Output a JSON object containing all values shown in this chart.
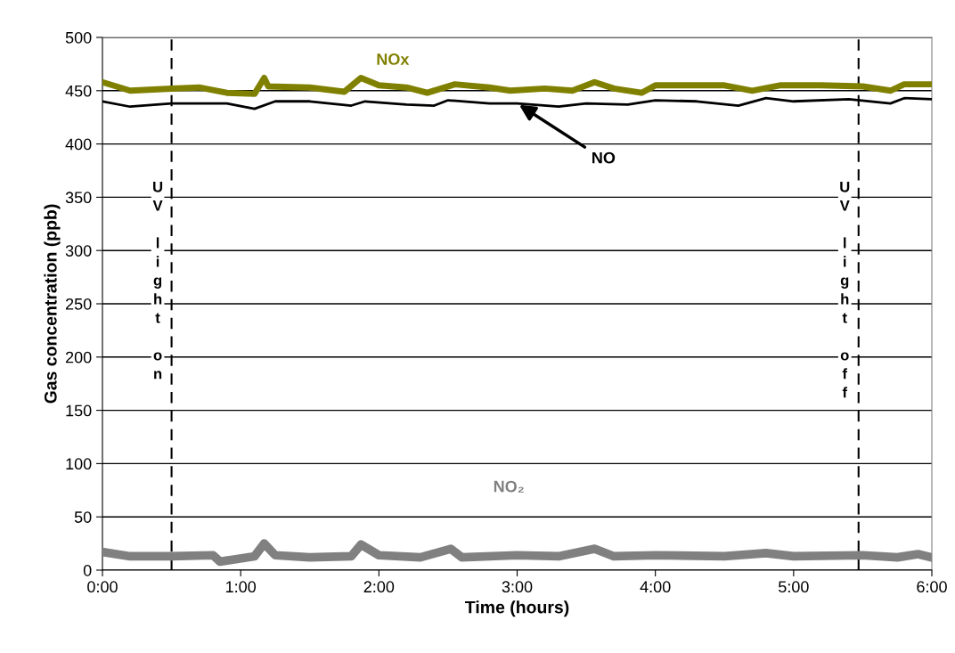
{
  "chart_data": {
    "type": "line",
    "xlabel": "Time (hours)",
    "ylabel": "Gas concentration (ppb)",
    "xlim": [
      0,
      6
    ],
    "xticks": [
      {
        "value": 0,
        "label": "0:00"
      },
      {
        "value": 1,
        "label": "1:00"
      },
      {
        "value": 2,
        "label": "2:00"
      },
      {
        "value": 3,
        "label": "3:00"
      },
      {
        "value": 4,
        "label": "4:00"
      },
      {
        "value": 5,
        "label": "5:00"
      },
      {
        "value": 6,
        "label": "6:00"
      }
    ],
    "ylim": [
      0,
      500
    ],
    "yticks": [
      0,
      50,
      100,
      150,
      200,
      250,
      300,
      350,
      400,
      450,
      500
    ],
    "grid": "y",
    "series": [
      {
        "name": "NOx",
        "color": "#808000",
        "x": [
          0,
          0.2,
          0.5,
          0.7,
          0.9,
          1.1,
          1.17,
          1.2,
          1.5,
          1.75,
          1.87,
          2.0,
          2.2,
          2.35,
          2.55,
          2.8,
          2.95,
          3.2,
          3.4,
          3.56,
          3.7,
          3.9,
          4.0,
          4.5,
          4.7,
          4.9,
          5.2,
          5.5,
          5.7,
          5.8,
          6.0
        ],
        "values": [
          458,
          450,
          452,
          453,
          448,
          447,
          462,
          454,
          453,
          449,
          462,
          455,
          453,
          448,
          456,
          453,
          450,
          452,
          450,
          458,
          452,
          448,
          455,
          455,
          450,
          455,
          455,
          454,
          450,
          456,
          456
        ]
      },
      {
        "name": "NO",
        "color": "#000000",
        "x": [
          0,
          0.2,
          0.5,
          0.9,
          1.1,
          1.25,
          1.5,
          1.8,
          1.9,
          2.2,
          2.4,
          2.5,
          2.8,
          3.0,
          3.3,
          3.5,
          3.8,
          4.0,
          4.3,
          4.6,
          4.8,
          5.0,
          5.4,
          5.7,
          5.8,
          6.0
        ],
        "values": [
          440,
          435,
          438,
          438,
          433,
          440,
          440,
          436,
          440,
          437,
          436,
          441,
          438,
          438,
          435,
          438,
          437,
          441,
          440,
          436,
          443,
          440,
          442,
          438,
          443,
          442
        ]
      },
      {
        "name": "NO₂",
        "color": "#808080",
        "x": [
          0,
          0.2,
          0.5,
          0.8,
          0.85,
          1.1,
          1.17,
          1.25,
          1.5,
          1.8,
          1.87,
          2.0,
          2.3,
          2.52,
          2.6,
          3.0,
          3.3,
          3.56,
          3.7,
          4.0,
          4.5,
          4.8,
          5.0,
          5.5,
          5.75,
          5.9,
          6.0
        ],
        "values": [
          17,
          13,
          13,
          14,
          8,
          13,
          25,
          14,
          12,
          13,
          24,
          14,
          12,
          20,
          12,
          14,
          13,
          20,
          13,
          14,
          13,
          16,
          13,
          14,
          12,
          15,
          12
        ]
      }
    ],
    "ref_lines": [
      {
        "axis": "x",
        "value": 0.5,
        "label": "UV light on",
        "color": "#000000",
        "line_style": "dashed"
      },
      {
        "axis": "x",
        "value": 5.47,
        "label": "UV light off",
        "color": "#000000",
        "line_style": "dashed"
      }
    ]
  }
}
